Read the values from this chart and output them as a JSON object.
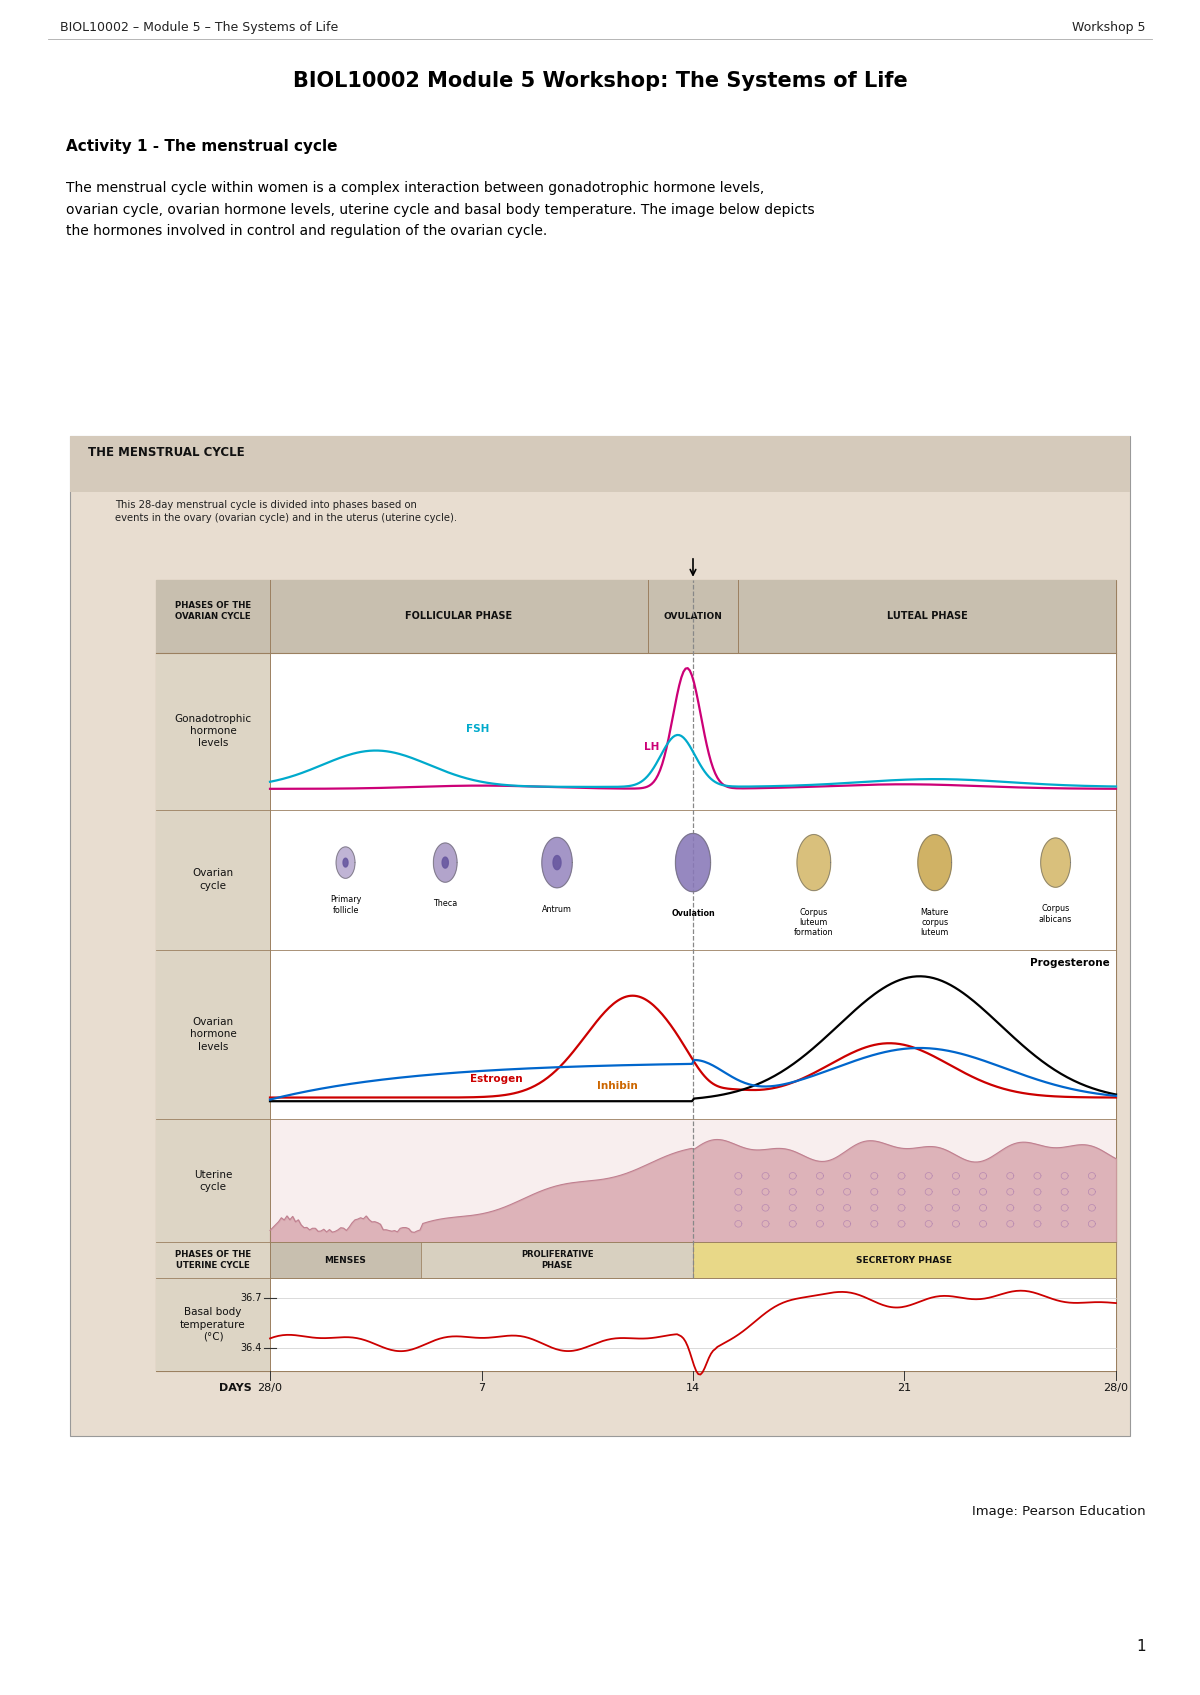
{
  "page_title": "BIOL10002 Module 5 Workshop: The Systems of Life",
  "header_left": "BIOL10002 – Module 5 – The Systems of Life",
  "header_right": "Workshop 5",
  "activity_title": "Activity 1 - The menstrual cycle",
  "body_text": "The menstrual cycle within women is a complex interaction between gonadotrophic hormone levels,\novarian cycle, ovarian hormone levels, uterine cycle and basal body temperature. The image below depicts\nthe hormones involved in control and regulation of the ovarian cycle.",
  "diagram_title": "THE MENSTRUAL CYCLE",
  "diagram_subtitle": "This 28-day menstrual cycle is divided into phases based on\nevents in the ovary (ovarian cycle) and in the uterus (uterine cycle).",
  "image_credit": "Image: Pearson Education",
  "page_number": "1",
  "bg_color": "#ffffff",
  "diagram_outer_bg": "#e8ddd0",
  "table_header_bg": "#c8bfaf",
  "table_row_bg": "#ddd5c5",
  "line_color": "#9b8060",
  "lh_color": "#cc0077",
  "fsh_color": "#00aacc",
  "estrogen_color": "#cc0000",
  "progesterone_color": "#000000",
  "inhibin_color": "#cc6600",
  "blue2_color": "#0066cc",
  "temp_color": "#cc0000",
  "menses_bg": "#c8bfaf",
  "prolif_bg": "#d8d0c0",
  "secretory_bg": "#e8d888"
}
